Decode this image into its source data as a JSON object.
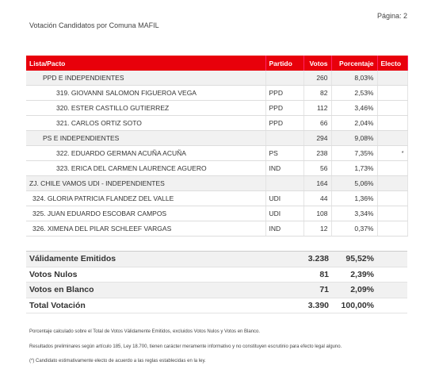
{
  "header": {
    "page": "Página: 2",
    "title": "Votación Candidatos por Comuna MAFIL"
  },
  "table": {
    "columns": [
      "Lista/Pacto",
      "Partido",
      "Votos",
      "Porcentaje",
      "Electo"
    ],
    "rows": [
      {
        "name": "PPD E INDEPENDIENTES",
        "votes": "260",
        "percent": "8,03%"
      },
      {
        "name": "319. GIOVANNI SALOMON FIGUEROA VEGA",
        "party": "PPD",
        "votes": "82",
        "percent": "2,53%"
      },
      {
        "name": "320. ESTER CASTILLO GUTIERREZ",
        "party": "PPD",
        "votes": "112",
        "percent": "3,46%"
      },
      {
        "name": "321. CARLOS ORTIZ SOTO",
        "party": "PPD",
        "votes": "66",
        "percent": "2,04%"
      },
      {
        "name": "PS E INDEPENDIENTES",
        "votes": "294",
        "percent": "9,08%"
      },
      {
        "name": "322. EDUARDO GERMAN ACUÑA ACUÑA",
        "party": "PS",
        "votes": "238",
        "percent": "7,35%",
        "elected": "*"
      },
      {
        "name": "323. ERICA DEL CARMEN LAURENCE AGUERO",
        "party": "IND",
        "votes": "56",
        "percent": "1,73%"
      },
      {
        "name": "ZJ. CHILE VAMOS UDI - INDEPENDIENTES",
        "votes": "164",
        "percent": "5,06%"
      },
      {
        "name": "324. GLORIA PATRICIA FLANDEZ DEL VALLE",
        "party": "UDI",
        "votes": "44",
        "percent": "1,36%"
      },
      {
        "name": "325. JUAN EDUARDO ESCOBAR CAMPOS",
        "party": "UDI",
        "votes": "108",
        "percent": "3,34%"
      },
      {
        "name": "326. XIMENA DEL PILAR SCHLEEF VARGAS",
        "party": "IND",
        "votes": "12",
        "percent": "0,37%"
      }
    ]
  },
  "summary": [
    {
      "label": "Válidamente Emitidos",
      "votes": "3.238",
      "percent": "95,52%"
    },
    {
      "label": "Votos Nulos",
      "votes": "81",
      "percent": "2,39%"
    },
    {
      "label": "Votos en Blanco",
      "votes": "71",
      "percent": "2,09%"
    },
    {
      "label": "Total Votación",
      "votes": "3.390",
      "percent": "100,00%"
    }
  ],
  "notes": [
    "Porcentaje calculado sobre el Total de Votos Válidamente Emitidos, excluidos Votos Nulos y Votos en Blanco.",
    "Resultados preliminares según artículo 185, Ley 18.700, tienen carácter meramente informativo y no constituyen escrutinio para efecto legal alguno.",
    "(*) Candidato estimativamente electo de acuerdo a las reglas establecidas en la ley."
  ]
}
